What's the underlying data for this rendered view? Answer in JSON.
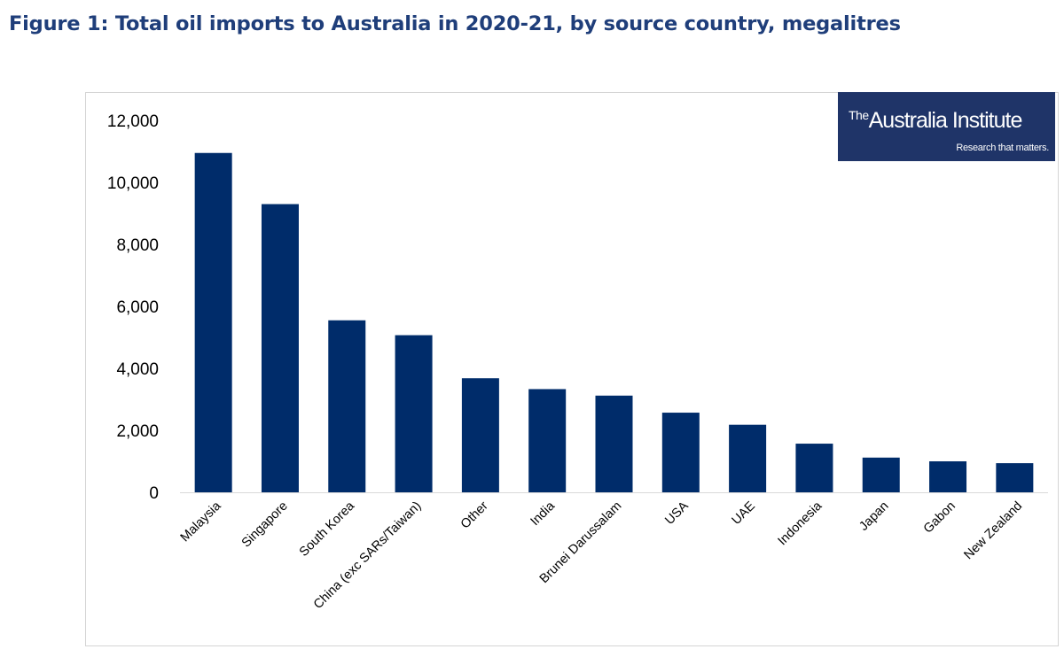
{
  "figure": {
    "title": "Figure 1: Total oil imports to Australia in 2020-21, by source country, megalitres"
  },
  "logo": {
    "prefix": "The",
    "name": "Australia Institute",
    "tagline": "Research that matters."
  },
  "colors": {
    "bar": "#002c6a",
    "title": "#1f3e7a",
    "logo_bg": "#1f3468"
  },
  "chart_data": {
    "type": "bar",
    "title": "Figure 1: Total oil imports to Australia in 2020-21, by source country, megalitres",
    "xlabel": "",
    "ylabel": "",
    "ylim": [
      0,
      12000
    ],
    "yticks": [
      0,
      2000,
      4000,
      6000,
      8000,
      10000,
      12000
    ],
    "ytick_labels": [
      "0",
      "2,000",
      "4,000",
      "6,000",
      "8,000",
      "10,000",
      "12,000"
    ],
    "grid": false,
    "legend": "none",
    "categories": [
      "Malaysia",
      "Singapore",
      "South Korea",
      "China (exc SARs/Taiwan)",
      "Other",
      "India",
      "Brunei Darussalam",
      "USA",
      "UAE",
      "Indonesia",
      "Japan",
      "Gabon",
      "New Zealand"
    ],
    "values": [
      10950,
      9300,
      5550,
      5070,
      3680,
      3330,
      3120,
      2570,
      2180,
      1570,
      1120,
      1000,
      940
    ]
  }
}
